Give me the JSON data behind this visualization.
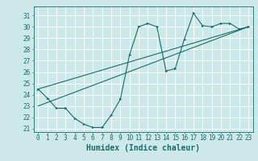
{
  "background_color": "#cce8e8",
  "grid_color": "#ffffff",
  "line_color": "#1a6b6b",
  "xlabel": "Humidex (Indice chaleur)",
  "xlim": [
    -0.5,
    23.5
  ],
  "ylim": [
    20.7,
    31.8
  ],
  "yticks": [
    21,
    22,
    23,
    24,
    25,
    26,
    27,
    28,
    29,
    30,
    31
  ],
  "xticks": [
    0,
    1,
    2,
    3,
    4,
    5,
    6,
    7,
    8,
    9,
    10,
    11,
    12,
    13,
    14,
    15,
    16,
    17,
    18,
    19,
    20,
    21,
    22,
    23
  ],
  "series1_x": [
    0,
    1,
    2,
    3,
    4,
    5,
    6,
    7,
    8,
    9,
    10,
    11,
    12,
    13,
    14,
    15,
    16,
    17,
    18,
    19,
    20,
    21,
    22,
    23
  ],
  "series1_y": [
    24.5,
    23.7,
    22.8,
    22.8,
    21.9,
    21.4,
    21.1,
    21.1,
    22.2,
    23.6,
    27.5,
    30.0,
    30.3,
    30.0,
    26.1,
    26.3,
    28.9,
    31.2,
    30.1,
    30.0,
    30.3,
    30.3,
    29.8,
    30.0
  ],
  "series2_x": [
    0,
    23
  ],
  "series2_y": [
    24.5,
    30.0
  ],
  "series3_x": [
    0,
    23
  ],
  "series3_y": [
    23.0,
    30.0
  ],
  "tick_fontsize": 5.5,
  "label_fontsize": 7
}
